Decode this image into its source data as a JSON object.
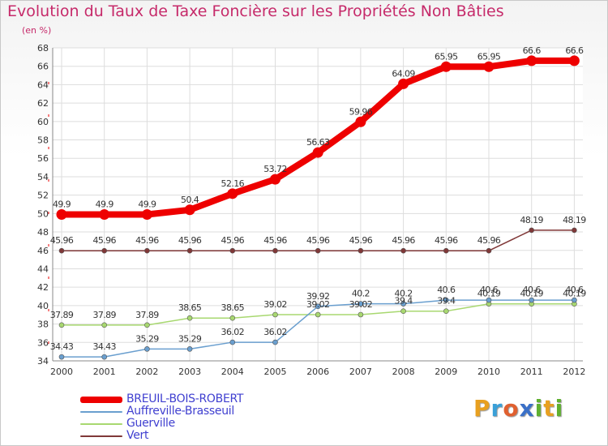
{
  "header": {
    "title": "Evolution du Taux de Taxe Foncière sur les Propriétés Non Bâties",
    "subtitle": "(en %)"
  },
  "logo": {
    "letters": [
      "P",
      "r",
      "o",
      "x",
      "i",
      "t",
      "i"
    ],
    "colors": [
      "#e8a020",
      "#3aa0d8",
      "#e06030",
      "#3a70c8",
      "#60b030",
      "#e8a020",
      "#60b030"
    ]
  },
  "chart_data": {
    "type": "line",
    "title": "Evolution du Taux de Taxe Foncière sur les Propriétés Non Bâties",
    "ylabel": "(en %)",
    "x": [
      "2000",
      "2001",
      "2002",
      "2003",
      "2004",
      "2005",
      "2006",
      "2007",
      "2008",
      "2009",
      "2010",
      "2011",
      "2012"
    ],
    "ylim": [
      34,
      68
    ],
    "yticks": [
      34,
      36,
      38,
      40,
      42,
      44,
      46,
      48,
      50,
      52,
      54,
      56,
      58,
      60,
      62,
      64,
      66,
      68
    ],
    "grid": true,
    "legend_position": "bottom-left",
    "series": [
      {
        "name": "BREUIL-BOIS-ROBERT",
        "color": "#ee0000",
        "values": [
          49.9,
          49.9,
          49.9,
          50.4,
          52.16,
          53.72,
          56.63,
          59.96,
          64.09,
          65.95,
          65.95,
          66.6,
          66.6
        ],
        "labels": [
          "49.9",
          "49.9",
          "49.9",
          "50.4",
          "52.16",
          "53.72",
          "56.63",
          "59.96",
          "64.09",
          "65.95",
          "65.95",
          "66.6",
          "66.6"
        ]
      },
      {
        "name": "Auffreville-Brasseuil",
        "color": "#6a9fcf",
        "values": [
          34.43,
          34.43,
          35.29,
          35.29,
          36.02,
          36.02,
          39.92,
          40.2,
          40.2,
          40.6,
          40.6,
          40.6,
          40.6
        ],
        "labels": [
          "34.43",
          "34.43",
          "35.29",
          "35.29",
          "36.02",
          "36.02",
          "39.92",
          "40.2",
          "40.2",
          "40.6",
          "40.6",
          "40.6",
          "40.6"
        ]
      },
      {
        "name": "Guerville",
        "color": "#a8d870",
        "values": [
          37.89,
          37.89,
          37.89,
          38.65,
          38.65,
          39.02,
          39.02,
          39.02,
          39.4,
          39.4,
          40.19,
          40.19,
          40.19
        ],
        "labels": [
          "37.89",
          "37.89",
          "37.89",
          "38.65",
          "38.65",
          "39.02",
          "39.02",
          "39.02",
          "39.4",
          "39.4",
          "40.19",
          "40.19",
          "40.19"
        ]
      },
      {
        "name": "Vert",
        "color": "#803838",
        "values": [
          45.96,
          45.96,
          45.96,
          45.96,
          45.96,
          45.96,
          45.96,
          45.96,
          45.96,
          45.96,
          45.96,
          48.19,
          48.19
        ],
        "labels": [
          "45.96",
          "45.96",
          "45.96",
          "45.96",
          "45.96",
          "45.96",
          "45.96",
          "45.96",
          "45.96",
          "45.96",
          "45.96",
          "48.19",
          "48.19"
        ]
      }
    ]
  }
}
